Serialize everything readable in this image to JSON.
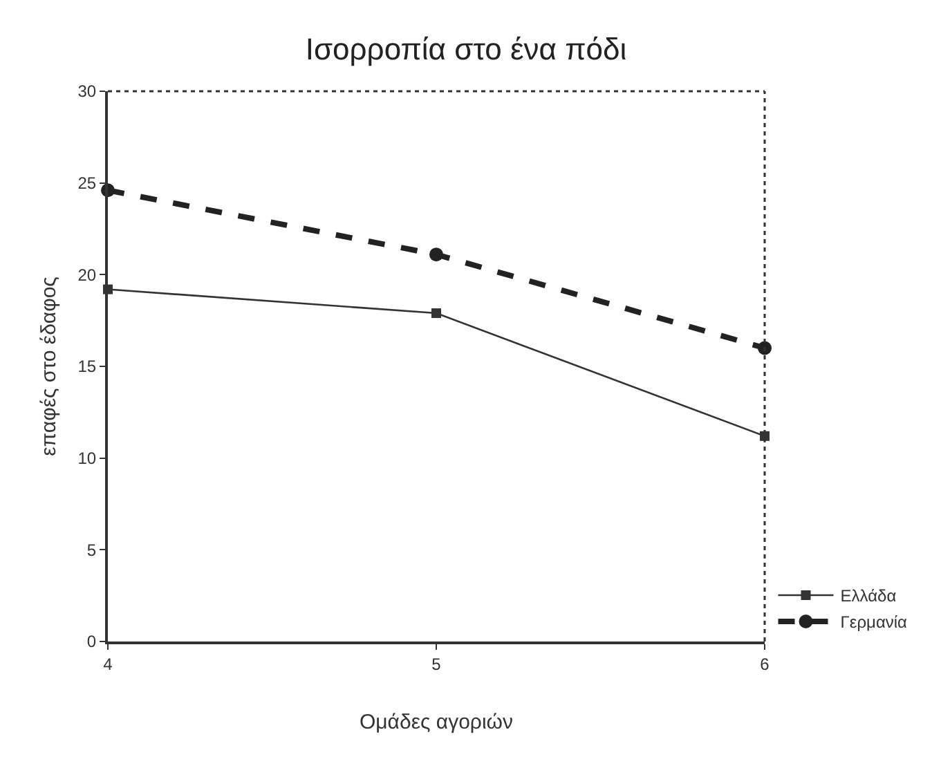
{
  "chart_data": {
    "type": "line",
    "title": "Ισορροπία στο ένα πόδι",
    "xlabel": "Ομάδες αγοριών",
    "ylabel": "επαφές στο έδαφος",
    "x": [
      4,
      5,
      6
    ],
    "xlim": [
      4,
      6
    ],
    "xticks": [
      4,
      5,
      6
    ],
    "ylim": [
      0,
      30
    ],
    "yticks": [
      0,
      5,
      10,
      15,
      20,
      25,
      30
    ],
    "grid": false,
    "legend": "bottom right",
    "series": [
      {
        "name": "Ελλάδα",
        "color": "#333333",
        "values": [
          19.2,
          17.9,
          11.2
        ],
        "marker": "square",
        "line_style": "solid"
      },
      {
        "name": "Γερμανία",
        "color": "#222222",
        "values": [
          24.6,
          21.1,
          16.0
        ],
        "marker": "circle",
        "line_style": "dashed"
      }
    ]
  }
}
